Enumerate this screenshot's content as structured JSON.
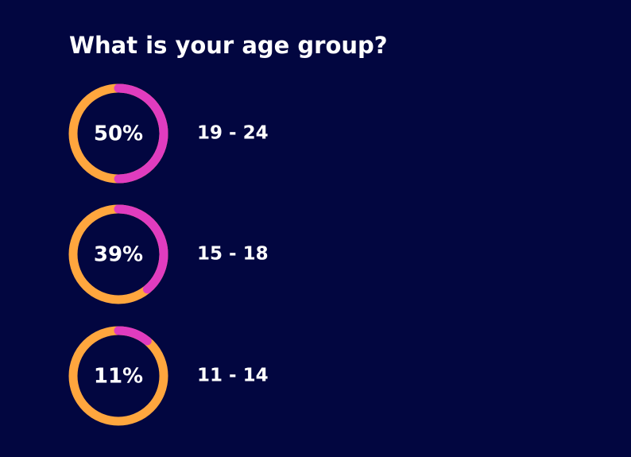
{
  "chart_data": {
    "type": "donut",
    "title": "What is your age group?",
    "categories": [
      "19 - 24",
      "15 - 18",
      "11 - 14"
    ],
    "values": [
      50,
      39,
      11
    ],
    "value_labels": [
      "50%",
      "39%",
      "11%"
    ],
    "color": "#e03cbf",
    "track_color": "#ffa63e"
  }
}
